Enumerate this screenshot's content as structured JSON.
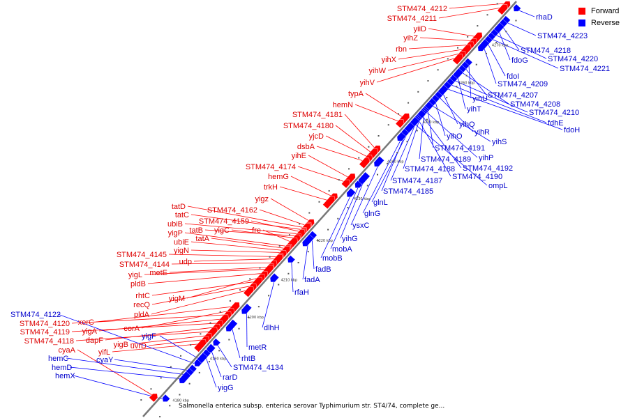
{
  "colors": {
    "forward": "#ff0000",
    "reverse": "#0000ff",
    "backbone": "#777777",
    "forward_label": "#dd0000",
    "reverse_label": "#0000cc"
  },
  "legend": {
    "forward": "Forward",
    "reverse": "Reverse"
  },
  "caption": "Salmonella enterica subsp. enterica serovar Typhimurium str. ST4/74, complete ge...",
  "scale": {
    "unit": "kbp",
    "ticks": [
      "4180 kbp",
      "4190 kbp",
      "4200 kbp",
      "4210 kbp",
      "4220 kbp",
      "4230 kbp",
      "4240 kbp",
      "4250 kbp",
      "4260 kbp",
      "4270 kbp"
    ]
  },
  "genes_forward": [
    "STM474_4212",
    "STM474_4211",
    "yiiD",
    "yihZ",
    "rbn",
    "yihX",
    "yihW",
    "yihV",
    "typA",
    "hemN",
    "STM474_4181",
    "STM474_4180",
    "yjcD",
    "dsbA",
    "yihE",
    "STM474_4174",
    "hemG",
    "trkH",
    "yigz",
    "STM474_4162",
    "tatD",
    "tatC",
    "STM474_4159",
    "ubiB",
    "tatB",
    "yigC",
    "fre",
    "yigP",
    "tatA",
    "ubiE",
    "yigN",
    "STM474_4145",
    "udp",
    "STM474_4144",
    "metE",
    "yigL",
    "pldB",
    "yigM",
    "rhtC",
    "recQ",
    "pldA",
    "xerC",
    "corA",
    "STM474_4120",
    "yigA",
    "STM474_4119",
    "dapF",
    "STM474_4118",
    "yigB",
    "uvrD",
    "yifL",
    "cyaA"
  ],
  "genes_reverse": [
    "rhaD",
    "STM474_4223",
    "STM474_4218",
    "fdoG",
    "STM474_4220",
    "STM474_4221",
    "fdoI",
    "STM474_4209",
    "yihU",
    "STM474_4207",
    "STM474_4208",
    "yihT",
    "STM474_4210",
    "fdhE",
    "fdoH",
    "yihQ",
    "yihR",
    "yihO",
    "yihS",
    "STM474_4191",
    "yihP",
    "STM474_4189",
    "STM474_4192",
    "STM474_4188",
    "STM474_4190",
    "STM474_4187",
    "ompL",
    "glnL",
    "STM474_4185",
    "glnG",
    "ysxC",
    "yihG",
    "mobA",
    "mobB",
    "fadB",
    "fadA",
    "rfaH",
    "dlhH",
    "metR",
    "rhtB",
    "STM474_4134",
    "rarD",
    "yigG",
    "yigF",
    "STM474_4122",
    "cyaY",
    "hemC",
    "hemD",
    "hemX"
  ]
}
